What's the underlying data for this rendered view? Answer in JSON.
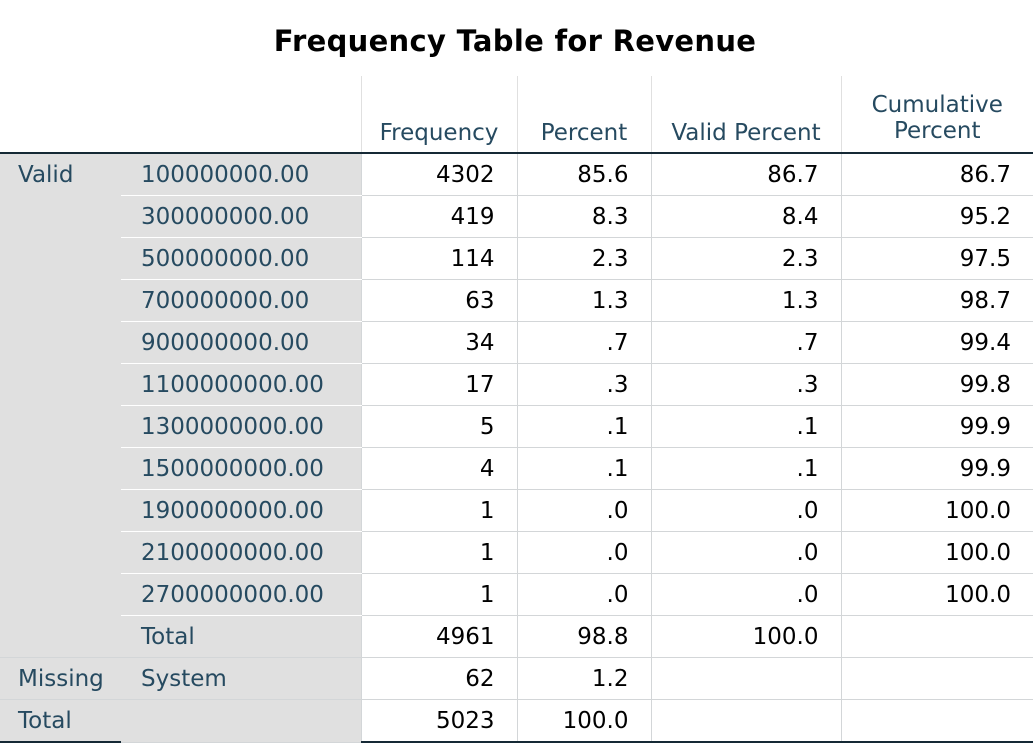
{
  "title": "Frequency Table for Revenue",
  "columns": {
    "frequency": "Frequency",
    "percent": "Percent",
    "valid_percent": "Valid Percent",
    "cumulative_line1": "Cumulative",
    "cumulative_line2": "Percent"
  },
  "valid": {
    "label": "Valid",
    "rows": [
      {
        "value": "100000000.00",
        "frequency": "4302",
        "percent": "85.6",
        "valid_percent": "86.7",
        "cumulative": "86.7"
      },
      {
        "value": "300000000.00",
        "frequency": "419",
        "percent": "8.3",
        "valid_percent": "8.4",
        "cumulative": "95.2"
      },
      {
        "value": "500000000.00",
        "frequency": "114",
        "percent": "2.3",
        "valid_percent": "2.3",
        "cumulative": "97.5"
      },
      {
        "value": "700000000.00",
        "frequency": "63",
        "percent": "1.3",
        "valid_percent": "1.3",
        "cumulative": "98.7"
      },
      {
        "value": "900000000.00",
        "frequency": "34",
        "percent": ".7",
        "valid_percent": ".7",
        "cumulative": "99.4"
      },
      {
        "value": "1100000000.00",
        "frequency": "17",
        "percent": ".3",
        "valid_percent": ".3",
        "cumulative": "99.8"
      },
      {
        "value": "1300000000.00",
        "frequency": "5",
        "percent": ".1",
        "valid_percent": ".1",
        "cumulative": "99.9"
      },
      {
        "value": "1500000000.00",
        "frequency": "4",
        "percent": ".1",
        "valid_percent": ".1",
        "cumulative": "99.9"
      },
      {
        "value": "1900000000.00",
        "frequency": "1",
        "percent": ".0",
        "valid_percent": ".0",
        "cumulative": "100.0"
      },
      {
        "value": "2100000000.00",
        "frequency": "1",
        "percent": ".0",
        "valid_percent": ".0",
        "cumulative": "100.0"
      },
      {
        "value": "2700000000.00",
        "frequency": "1",
        "percent": ".0",
        "valid_percent": ".0",
        "cumulative": "100.0"
      }
    ],
    "total": {
      "label": "Total",
      "frequency": "4961",
      "percent": "98.8",
      "valid_percent": "100.0",
      "cumulative": ""
    }
  },
  "missing": {
    "label": "Missing",
    "sublabel": "System",
    "frequency": "62",
    "percent": "1.2"
  },
  "total": {
    "label": "Total",
    "frequency": "5023",
    "percent": "100.0"
  }
}
